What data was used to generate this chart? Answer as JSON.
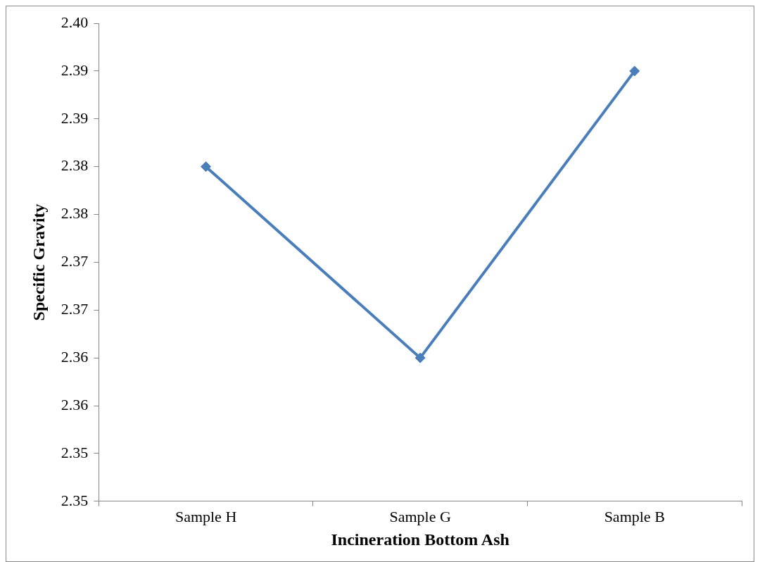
{
  "chart_data": {
    "type": "line",
    "xlabel": "Incineration Bottom Ash",
    "ylabel": "Specific Gravity",
    "categories": [
      "Sample H",
      "Sample G",
      "Sample B"
    ],
    "series": [
      {
        "color": "#4a7ebb",
        "values": [
          2.385,
          2.365,
          2.395
        ]
      }
    ],
    "ylim": [
      2.35,
      2.4
    ],
    "yticks": [
      {
        "value": 2.35,
        "label": "2.35"
      },
      {
        "value": 2.355,
        "label": "2.35"
      },
      {
        "value": 2.36,
        "label": "2.36"
      },
      {
        "value": 2.365,
        "label": "2.36"
      },
      {
        "value": 2.37,
        "label": "2.37"
      },
      {
        "value": 2.375,
        "label": "2.37"
      },
      {
        "value": 2.38,
        "label": "2.38"
      },
      {
        "value": 2.385,
        "label": "2.38"
      },
      {
        "value": 2.39,
        "label": "2.39"
      },
      {
        "value": 2.395,
        "label": "2.39"
      },
      {
        "value": 2.4,
        "label": "2.40"
      }
    ],
    "grid": false,
    "legend": false,
    "marker": "diamond",
    "line_style": "solid"
  }
}
